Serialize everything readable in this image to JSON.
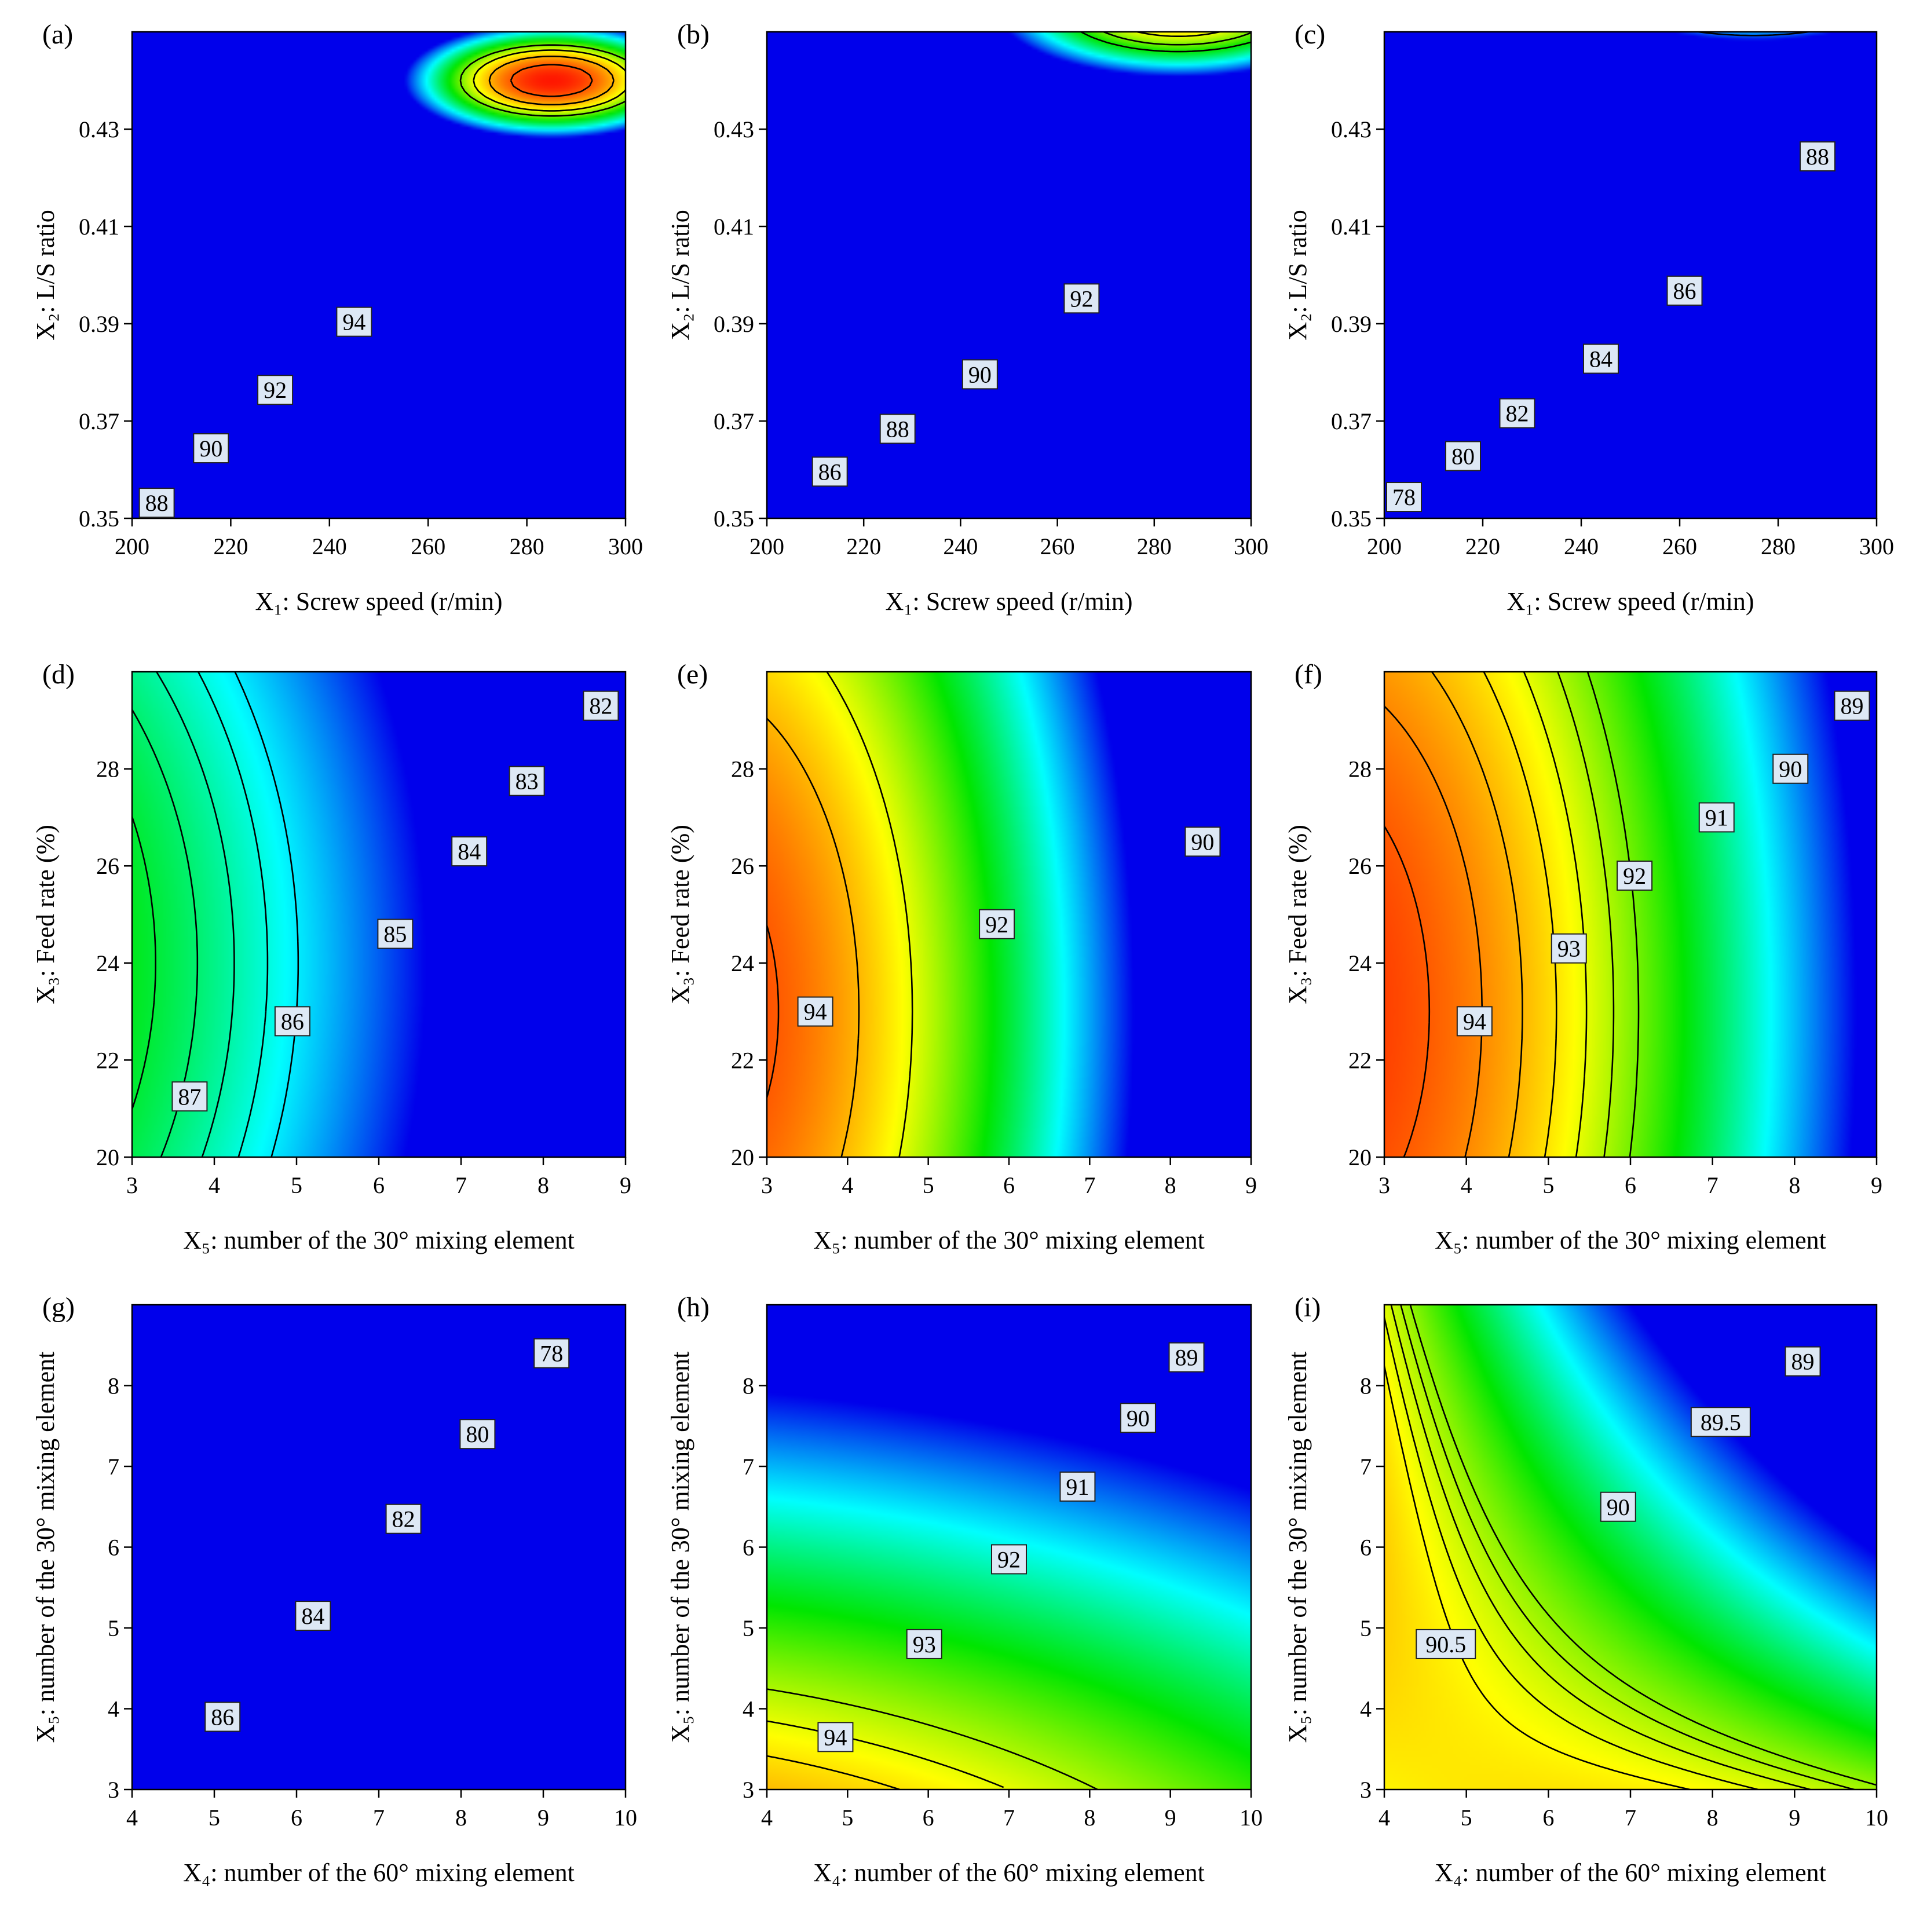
{
  "chart_data": [
    {
      "type": "heatmap",
      "panel": "(a)",
      "xlabel": "X₁: Screw speed (r/min)",
      "ylabel": "X₂: L/S ratio",
      "xlim": [
        200,
        300
      ],
      "ylim": [
        0.35,
        0.45
      ],
      "xticks": [
        200,
        220,
        240,
        260,
        280,
        300
      ],
      "yticks": [
        0.35,
        0.37,
        0.39,
        0.41,
        0.43
      ],
      "xtick_labels": [
        "200",
        "220",
        "240",
        "260",
        "280",
        "300"
      ],
      "ytick_labels": [
        "0.35",
        "0.37",
        "0.39",
        "0.41",
        "0.43"
      ],
      "model": {
        "x0": 285,
        "y0": 0.44,
        "ax": 2.2,
        "ay": 14,
        "b0": 95.5
      },
      "color_range": [
        76,
        96
      ],
      "contour_levels": [
        88,
        90,
        92,
        94
      ],
      "contour_labels": [
        {
          "text": "88",
          "x": 205,
          "y": 0.3532
        },
        {
          "text": "90",
          "x": 216,
          "y": 0.3644
        },
        {
          "text": "92",
          "x": 229,
          "y": 0.3764
        },
        {
          "text": "94",
          "x": 245,
          "y": 0.3904
        }
      ]
    },
    {
      "type": "heatmap",
      "panel": "(b)",
      "xlabel": "X₁: Screw speed (r/min)",
      "ylabel": "X₂: L/S ratio",
      "xlim": [
        200,
        300
      ],
      "ylim": [
        0.35,
        0.45
      ],
      "xticks": [
        200,
        220,
        240,
        260,
        280,
        300
      ],
      "yticks": [
        0.35,
        0.37,
        0.39,
        0.41,
        0.43
      ],
      "xtick_labels": [
        "200",
        "220",
        "240",
        "260",
        "280",
        "300"
      ],
      "ytick_labels": [
        "0.35",
        "0.37",
        "0.39",
        "0.41",
        "0.43"
      ],
      "model": {
        "x0": 285,
        "y0": 0.455,
        "ax": 1.2,
        "ay": 8.5,
        "b0": 93.0
      },
      "color_range": [
        76,
        96
      ],
      "contour_levels": [
        86,
        88,
        90,
        92
      ],
      "contour_labels": [
        {
          "text": "86",
          "x": 213,
          "y": 0.3596
        },
        {
          "text": "88",
          "x": 227,
          "y": 0.3684
        },
        {
          "text": "90",
          "x": 244,
          "y": 0.3796
        },
        {
          "text": "92",
          "x": 265,
          "y": 0.3952
        }
      ]
    },
    {
      "type": "heatmap",
      "panel": "(c)",
      "xlabel": "X₁: Screw speed (r/min)",
      "ylabel": "X₂: L/S ratio",
      "xlim": [
        200,
        300
      ],
      "ylim": [
        0.35,
        0.45
      ],
      "xticks": [
        200,
        220,
        240,
        260,
        280,
        300
      ],
      "yticks": [
        0.35,
        0.37,
        0.39,
        0.41,
        0.43
      ],
      "xtick_labels": [
        "200",
        "220",
        "240",
        "260",
        "280",
        "300"
      ],
      "ytick_labels": [
        "0.35",
        "0.37",
        "0.39",
        "0.41",
        "0.43"
      ],
      "model": {
        "x0": 275,
        "y0": 0.46,
        "ax": 1.2,
        "ay": 9.5,
        "b0": 89.0
      },
      "color_range": [
        76,
        96
      ],
      "contour_levels": [
        78,
        80,
        82,
        84,
        86,
        88
      ],
      "contour_labels": [
        {
          "text": "78",
          "x": 204,
          "y": 0.3544
        },
        {
          "text": "80",
          "x": 216,
          "y": 0.3628
        },
        {
          "text": "82",
          "x": 227,
          "y": 0.3716
        },
        {
          "text": "84",
          "x": 244,
          "y": 0.3828
        },
        {
          "text": "86",
          "x": 261,
          "y": 0.3968
        },
        {
          "text": "88",
          "x": 288,
          "y": 0.4244
        }
      ]
    },
    {
      "type": "heatmap",
      "panel": "(d)",
      "xlabel": "X₅: number of the 30° mixing element",
      "ylabel": "X₃: Feed rate (%)",
      "xlim": [
        3,
        9
      ],
      "ylim": [
        20,
        30
      ],
      "xticks": [
        3,
        4,
        5,
        6,
        7,
        8,
        9
      ],
      "yticks": [
        20,
        22,
        24,
        26,
        28
      ],
      "xtick_labels": [
        "3",
        "4",
        "5",
        "6",
        "7",
        "8",
        "9"
      ],
      "ytick_labels": [
        "20",
        "22",
        "24",
        "26",
        "28"
      ],
      "model": {
        "x0": 0,
        "y0": 24,
        "ax": 0.1,
        "ay": 0.055,
        "b0": 88.0
      },
      "color_range": [
        76,
        96
      ],
      "contour_levels": [
        81,
        82,
        83,
        84,
        85,
        86,
        87
      ],
      "contour_labels": [
        {
          "text": "82",
          "x": 8.7,
          "y": 29.3
        },
        {
          "text": "83",
          "x": 7.8,
          "y": 27.75
        },
        {
          "text": "84",
          "x": 7.1,
          "y": 26.3
        },
        {
          "text": "85",
          "x": 6.2,
          "y": 24.6
        },
        {
          "text": "86",
          "x": 4.95,
          "y": 22.8
        },
        {
          "text": "87",
          "x": 3.7,
          "y": 21.25
        }
      ]
    },
    {
      "type": "heatmap",
      "panel": "(e)",
      "xlabel": "X₅: number of the 30° mixing element",
      "ylabel": "X₃: Feed rate (%)",
      "xlim": [
        3,
        9
      ],
      "ylim": [
        20,
        30
      ],
      "xticks": [
        3,
        4,
        5,
        6,
        7,
        8,
        9
      ],
      "yticks": [
        20,
        22,
        24,
        26,
        28
      ],
      "xtick_labels": [
        "3",
        "4",
        "5",
        "6",
        "7",
        "8",
        "9"
      ],
      "ytick_labels": [
        "20",
        "22",
        "24",
        "26",
        "28"
      ],
      "model": {
        "x0": 2,
        "y0": 23,
        "ax": 0.22,
        "ay": 0.06,
        "b0": 94.8
      },
      "color_range": [
        76,
        96
      ],
      "contour_levels": [
        90,
        92,
        94
      ],
      "contour_labels": [
        {
          "text": "90",
          "x": 8.4,
          "y": 26.5
        },
        {
          "text": "92",
          "x": 5.85,
          "y": 24.8
        },
        {
          "text": "94",
          "x": 3.6,
          "y": 23.0
        }
      ]
    },
    {
      "type": "heatmap",
      "panel": "(f)",
      "xlabel": "X₅: number of the 30° mixing element",
      "ylabel": "X₃: Feed rate (%)",
      "xlim": [
        3,
        9
      ],
      "ylim": [
        20,
        30
      ],
      "xticks": [
        3,
        4,
        5,
        6,
        7,
        8,
        9
      ],
      "yticks": [
        20,
        22,
        24,
        26,
        28
      ],
      "xtick_labels": [
        "3",
        "4",
        "5",
        "6",
        "7",
        "8",
        "9"
      ],
      "ytick_labels": [
        "20",
        "22",
        "24",
        "26",
        "28"
      ],
      "model": {
        "x0": 2,
        "y0": 23,
        "ax": 0.15,
        "ay": 0.04,
        "b0": 95.0
      },
      "color_range": [
        76,
        96
      ],
      "contour_levels": [
        88,
        89,
        90,
        91,
        92,
        93,
        94
      ],
      "contour_labels": [
        {
          "text": "89",
          "x": 8.7,
          "y": 29.3
        },
        {
          "text": "90",
          "x": 7.95,
          "y": 28.0
        },
        {
          "text": "91",
          "x": 7.05,
          "y": 27.0
        },
        {
          "text": "92",
          "x": 6.05,
          "y": 25.8
        },
        {
          "text": "93",
          "x": 5.25,
          "y": 24.3
        },
        {
          "text": "94",
          "x": 4.1,
          "y": 22.8
        }
      ]
    },
    {
      "type": "heatmap",
      "panel": "(g)",
      "xlabel": "X₄: number of the 60° mixing element",
      "ylabel": "X₅: number of the 30° mixing element",
      "xlim": [
        4,
        10
      ],
      "ylim": [
        3,
        9
      ],
      "xticks": [
        4,
        5,
        6,
        7,
        8,
        9,
        10
      ],
      "yticks": [
        3,
        4,
        5,
        6,
        7,
        8
      ],
      "xtick_labels": [
        "4",
        "5",
        "6",
        "7",
        "8",
        "9",
        "10"
      ],
      "ytick_labels": [
        "3",
        "4",
        "5",
        "6",
        "7",
        "8"
      ],
      "model": {
        "x0": 1,
        "y0": -2,
        "ax": 0.08,
        "ay": 0.3,
        "b0": 93.5
      },
      "color_range": [
        76,
        96
      ],
      "contour_levels": [
        78,
        80,
        82,
        84,
        86
      ],
      "contour_labels": [
        {
          "text": "78",
          "x": 9.1,
          "y": 8.4
        },
        {
          "text": "80",
          "x": 8.2,
          "y": 7.4
        },
        {
          "text": "82",
          "x": 7.3,
          "y": 6.35
        },
        {
          "text": "84",
          "x": 6.2,
          "y": 5.15
        },
        {
          "text": "86",
          "x": 5.1,
          "y": 3.9
        }
      ]
    },
    {
      "type": "heatmap",
      "panel": "(h)",
      "xlabel": "X₄: number of the 60° mixing element",
      "ylabel": "X₅: number of the 30° mixing element",
      "xlim": [
        4,
        10
      ],
      "ylim": [
        3,
        9
      ],
      "xticks": [
        4,
        5,
        6,
        7,
        8,
        9,
        10
      ],
      "yticks": [
        3,
        4,
        5,
        6,
        7,
        8
      ],
      "xtick_labels": [
        "4",
        "5",
        "6",
        "7",
        "8",
        "9",
        "10"
      ],
      "ytick_labels": [
        "3",
        "4",
        "5",
        "6",
        "7",
        "8"
      ],
      "model": {
        "x0": 1,
        "y0": -1,
        "ax": 0.025,
        "ay": 0.09,
        "b0": 96.5
      },
      "color_range": [
        76,
        96
      ],
      "contour_levels": [
        89,
        90,
        91,
        92,
        93,
        94
      ],
      "contour_labels": [
        {
          "text": "89",
          "x": 9.2,
          "y": 8.35
        },
        {
          "text": "90",
          "x": 8.6,
          "y": 7.6
        },
        {
          "text": "91",
          "x": 7.85,
          "y": 6.75
        },
        {
          "text": "92",
          "x": 7.0,
          "y": 5.85
        },
        {
          "text": "93",
          "x": 5.95,
          "y": 4.8
        },
        {
          "text": "94",
          "x": 4.85,
          "y": 3.65
        }
      ]
    },
    {
      "type": "heatmap",
      "panel": "(i)",
      "xlabel": "X₄: number of the 60° mixing element",
      "ylabel": "X₅: number of the 30° mixing element",
      "xlim": [
        4,
        10
      ],
      "ylim": [
        3,
        9
      ],
      "xticks": [
        4,
        5,
        6,
        7,
        8,
        9,
        10
      ],
      "yticks": [
        3,
        4,
        5,
        6,
        7,
        8
      ],
      "xtick_labels": [
        "4",
        "5",
        "6",
        "7",
        "8",
        "9",
        "10"
      ],
      "ytick_labels": [
        "3",
        "4",
        "5",
        "6",
        "7",
        "8"
      ],
      "model": {
        "x0": 4.8,
        "y0": 3.3,
        "ax": 0.045,
        "ay": 0.05,
        "b0": 90.9,
        "axy": -0.028
      },
      "color_range": [
        76,
        96
      ],
      "contour_levels": [
        88.5,
        89,
        89.5,
        90,
        90.5
      ],
      "contour_labels": [
        {
          "text": "89",
          "x": 9.1,
          "y": 8.3
        },
        {
          "text": "89.5",
          "x": 8.1,
          "y": 7.55
        },
        {
          "text": "90",
          "x": 6.85,
          "y": 6.5
        },
        {
          "text": "90.5",
          "x": 4.75,
          "y": 4.8
        }
      ]
    }
  ]
}
